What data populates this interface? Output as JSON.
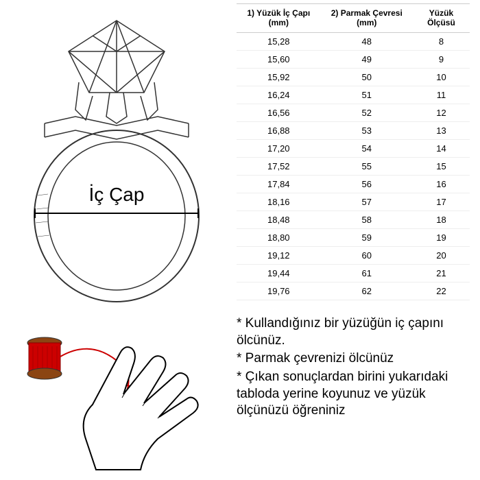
{
  "ring_label": "İç Çap",
  "table": {
    "columns": [
      "1) Yüzük İç Çapı (mm)",
      "2) Parmak Çevresi (mm)",
      "Yüzük Ölçüsü"
    ],
    "rows": [
      [
        "15,28",
        "48",
        "8"
      ],
      [
        "15,60",
        "49",
        "9"
      ],
      [
        "15,92",
        "50",
        "10"
      ],
      [
        "16,24",
        "51",
        "11"
      ],
      [
        "16,56",
        "52",
        "12"
      ],
      [
        "16,88",
        "53",
        "13"
      ],
      [
        "17,20",
        "54",
        "14"
      ],
      [
        "17,52",
        "55",
        "15"
      ],
      [
        "17,84",
        "56",
        "16"
      ],
      [
        "18,16",
        "57",
        "17"
      ],
      [
        "18,48",
        "58",
        "18"
      ],
      [
        "18,80",
        "59",
        "19"
      ],
      [
        "19,12",
        "60",
        "20"
      ],
      [
        "19,44",
        "61",
        "21"
      ],
      [
        "19,76",
        "62",
        "22"
      ]
    ]
  },
  "notes": [
    "* Kullandığınız bir yüzüğün iç çapını ölcünüz.",
    "* Parmak çevrenizi ölcünüz",
    "* Çıkan sonuçlardan birini yukarıdaki tabloda yerine koyunuz ve yüzük ölçünüzü öğreniniz"
  ],
  "colors": {
    "background": "#ffffff",
    "text": "#000000",
    "border": "#cccccc",
    "row_border": "#eeeeee",
    "spool": "#cc0000"
  }
}
